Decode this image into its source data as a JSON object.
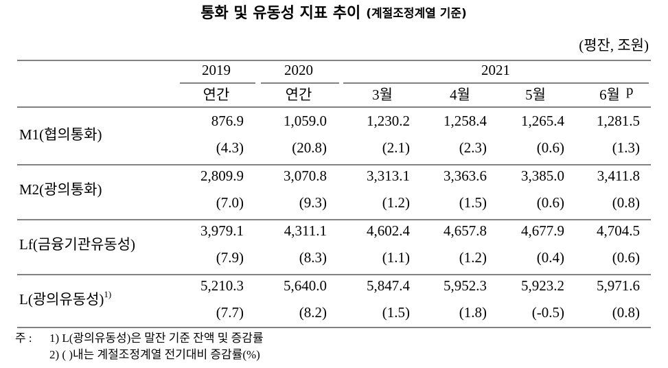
{
  "header": {
    "title": "통화 및 유동성 지표 추이",
    "subtitle": "(계절조정계열 기준)",
    "unit": "(평잔, 조원)"
  },
  "table": {
    "year_headers": [
      "2019",
      "2020",
      "2021"
    ],
    "period_headers": [
      "연간",
      "연간",
      "3월",
      "4월",
      "5월",
      "6월"
    ],
    "period_note": "p",
    "rows": [
      {
        "label": "M1(협의통화)",
        "values": [
          "876.9",
          "1,059.0",
          "1,230.2",
          "1,258.4",
          "1,265.4",
          "1,281.5"
        ],
        "changes": [
          "(4.3)",
          "(20.8)",
          "(2.1)",
          "(2.3)",
          "(0.6)",
          "(1.3)"
        ]
      },
      {
        "label": "M2(광의통화)",
        "values": [
          "2,809.9",
          "3,070.8",
          "3,313.1",
          "3,363.6",
          "3,385.0",
          "3,411.8"
        ],
        "changes": [
          "(7.0)",
          "(9.3)",
          "(1.2)",
          "(1.5)",
          "(0.6)",
          "(0.8)"
        ]
      },
      {
        "label": "Lf(금융기관유동성)",
        "values": [
          "3,979.1",
          "4,311.1",
          "4,602.4",
          "4,657.8",
          "4,677.9",
          "4,704.5"
        ],
        "changes": [
          "(7.9)",
          "(8.3)",
          "(1.1)",
          "(1.2)",
          "(0.4)",
          "(0.6)"
        ]
      },
      {
        "label": "L(광의유동성)",
        "label_note": "1)",
        "values": [
          "5,210.3",
          "5,640.0",
          "5,847.4",
          "5,952.3",
          "5,923.2",
          "5,971.6"
        ],
        "changes": [
          "(7.7)",
          "(8.2)",
          "(1.5)",
          "(1.8)",
          "(-0.5)",
          "(0.8)"
        ]
      }
    ]
  },
  "notes": {
    "prefix": "주 :",
    "items": [
      "1) L(광의유동성)은 말잔 기준 잔액 및 증감률",
      "2) (    )내는 계절조정계열 전기대비 증감률(%)"
    ]
  }
}
